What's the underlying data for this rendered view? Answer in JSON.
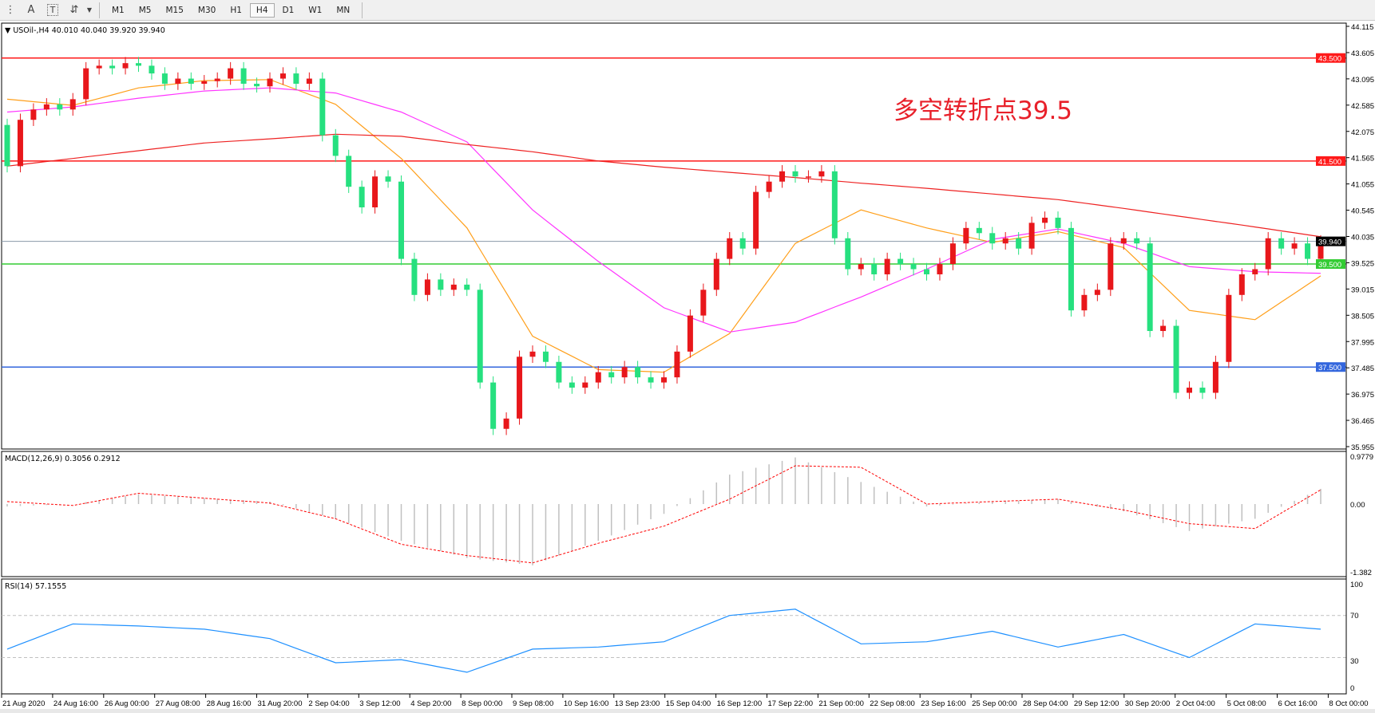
{
  "toolbar": {
    "icons": [
      "menu-list-icon",
      "text-A-icon",
      "text-T-icon",
      "arrows-tool-icon",
      "dropdown-arrow-icon"
    ],
    "A_label": "A",
    "T_label": "T",
    "timeframes": [
      "M1",
      "M5",
      "M15",
      "M30",
      "H1",
      "H4",
      "D1",
      "W1",
      "MN"
    ],
    "active_timeframe": "H4"
  },
  "main_panel": {
    "symbol_info": "USOil-,H4  40.010 40.040 39.920 39.940",
    "annotation": "多空转折点39.5",
    "annotation_color": "#e8202a"
  },
  "macd_panel": {
    "label": "MACD(12,26,9) 0.3056 0.2912",
    "axis_labels": [
      "0.9779",
      "0.00",
      "-1.382"
    ]
  },
  "rsi_panel": {
    "label": "RSI(14) 57.1555",
    "axis_labels": [
      "100",
      "70",
      "30",
      "0"
    ]
  },
  "chart_data": [
    {
      "type": "candlestick",
      "symbol": "USOil-",
      "timeframe": "H4",
      "ylim": [
        35.955,
        44.115
      ],
      "price_ticks": [
        "44.115",
        "43.605",
        "43.095",
        "42.585",
        "42.075",
        "41.565",
        "41.055",
        "40.545",
        "40.035",
        "39.525",
        "39.015",
        "38.505",
        "37.995",
        "37.485",
        "36.975",
        "36.465",
        "35.955"
      ],
      "time_labels": [
        "21 Aug 2020",
        "24 Aug 16:00",
        "26 Aug 00:00",
        "27 Aug 08:00",
        "28 Aug 16:00",
        "31 Aug 20:00",
        "2 Sep 04:00",
        "3 Sep 12:00",
        "4 Sep 20:00",
        "8 Sep 00:00",
        "9 Sep 08:00",
        "10 Sep 16:00",
        "13 Sep 23:00",
        "15 Sep 04:00",
        "16 Sep 12:00",
        "17 Sep 22:00",
        "21 Sep 00:00",
        "22 Sep 08:00",
        "23 Sep 16:00",
        "25 Sep 00:00",
        "28 Sep 04:00",
        "29 Sep 12:00",
        "30 Sep 20:00",
        "2 Oct 04:00",
        "5 Oct 08:00",
        "6 Oct 16:00",
        "8 Oct 00:00"
      ],
      "first_open": 42.2,
      "closes": [
        41.4,
        42.3,
        42.5,
        42.6,
        42.5,
        42.7,
        43.3,
        43.35,
        43.3,
        43.4,
        43.35,
        43.2,
        43.0,
        43.1,
        43.0,
        43.05,
        43.1,
        43.3,
        43.0,
        42.95,
        43.1,
        43.2,
        43.0,
        43.1,
        42.0,
        41.6,
        41.0,
        40.6,
        41.2,
        41.1,
        39.6,
        38.9,
        39.2,
        39.0,
        39.1,
        39.0,
        37.2,
        36.3,
        36.5,
        37.7,
        37.8,
        37.6,
        37.2,
        37.1,
        37.2,
        37.4,
        37.3,
        37.5,
        37.3,
        37.2,
        37.3,
        37.8,
        38.5,
        39.0,
        39.6,
        40.0,
        39.8,
        40.9,
        41.1,
        41.3,
        41.2,
        41.2,
        41.3,
        40.0,
        39.4,
        39.5,
        39.3,
        39.6,
        39.5,
        39.4,
        39.3,
        39.5,
        39.9,
        40.2,
        40.1,
        39.9,
        40.0,
        39.8,
        40.3,
        40.4,
        40.2,
        38.6,
        38.9,
        39.0,
        39.9,
        40.0,
        39.9,
        38.2,
        38.3,
        37.0,
        37.1,
        37.0,
        37.6,
        38.9,
        39.3,
        39.4,
        40.0,
        39.8,
        39.9,
        39.6,
        39.94
      ],
      "bull_color": "#e8171b",
      "bear_color": "#26e07f",
      "moving_averages_every_5_bars": [
        {
          "color": "#ff9f1a",
          "values": [
            42.7,
            42.58,
            42.92,
            43.06,
            43.08,
            42.6,
            41.55,
            40.2,
            38.1,
            37.45,
            37.4,
            38.15,
            39.9,
            40.55,
            40.2,
            39.92,
            40.13,
            39.82,
            38.6,
            38.42,
            39.27
          ]
        },
        {
          "color": "#ff33ff",
          "values": [
            42.45,
            42.55,
            42.72,
            42.86,
            42.92,
            42.82,
            42.45,
            41.87,
            40.55,
            39.55,
            38.65,
            38.18,
            38.37,
            38.86,
            39.4,
            39.98,
            40.18,
            39.9,
            39.45,
            39.35,
            39.32
          ]
        },
        {
          "color": "#ee2222",
          "values": [
            41.4,
            41.55,
            41.7,
            41.85,
            41.93,
            42.02,
            41.98,
            41.82,
            41.68,
            41.5,
            41.38,
            41.28,
            41.18,
            41.07,
            40.97,
            40.86,
            40.75,
            40.58,
            40.4,
            40.22,
            40.03
          ]
        }
      ],
      "horizontal_levels": [
        {
          "price": 43.5,
          "label": "43.500",
          "color": "#ff1a1a"
        },
        {
          "price": 41.5,
          "label": "41.500",
          "color": "#ff1a1a"
        },
        {
          "price": 39.5,
          "label": "39.500",
          "color": "#33cc33"
        },
        {
          "price": 37.5,
          "label": "37.500",
          "color": "#3366dd"
        }
      ],
      "current_price": {
        "price": 39.94,
        "label": "39.940",
        "color": "#000000"
      }
    },
    {
      "type": "bar+line",
      "name": "MACD(12,26,9)",
      "ylim": [
        -1.382,
        0.9779
      ],
      "histogram_every_5_bars": [
        -0.05,
        0.0,
        0.2,
        0.12,
        0.05,
        -0.3,
        -0.75,
        -1.1,
        -1.25,
        -0.75,
        -0.2,
        0.6,
        0.95,
        0.45,
        -0.05,
        0.05,
        0.1,
        -0.15,
        -0.55,
        -0.3,
        0.31
      ],
      "signal_every_5_bars": [
        0.05,
        -0.03,
        0.22,
        0.12,
        0.02,
        -0.3,
        -0.82,
        -1.05,
        -1.2,
        -0.8,
        -0.45,
        0.1,
        0.78,
        0.75,
        0.0,
        0.05,
        0.1,
        -0.12,
        -0.4,
        -0.5,
        0.29
      ],
      "histogram_color": "#c0c0c0",
      "signal_color": "#ff0000"
    },
    {
      "type": "line",
      "name": "RSI(14)",
      "ylim": [
        0,
        100
      ],
      "levels": [
        70,
        30
      ],
      "values_every_5_bars": [
        38,
        62,
        60,
        57,
        48,
        25,
        28,
        16,
        38,
        40,
        45,
        70,
        76,
        43,
        45,
        55,
        40,
        52,
        30,
        62,
        57
      ],
      "color": "#1e90ff"
    }
  ]
}
